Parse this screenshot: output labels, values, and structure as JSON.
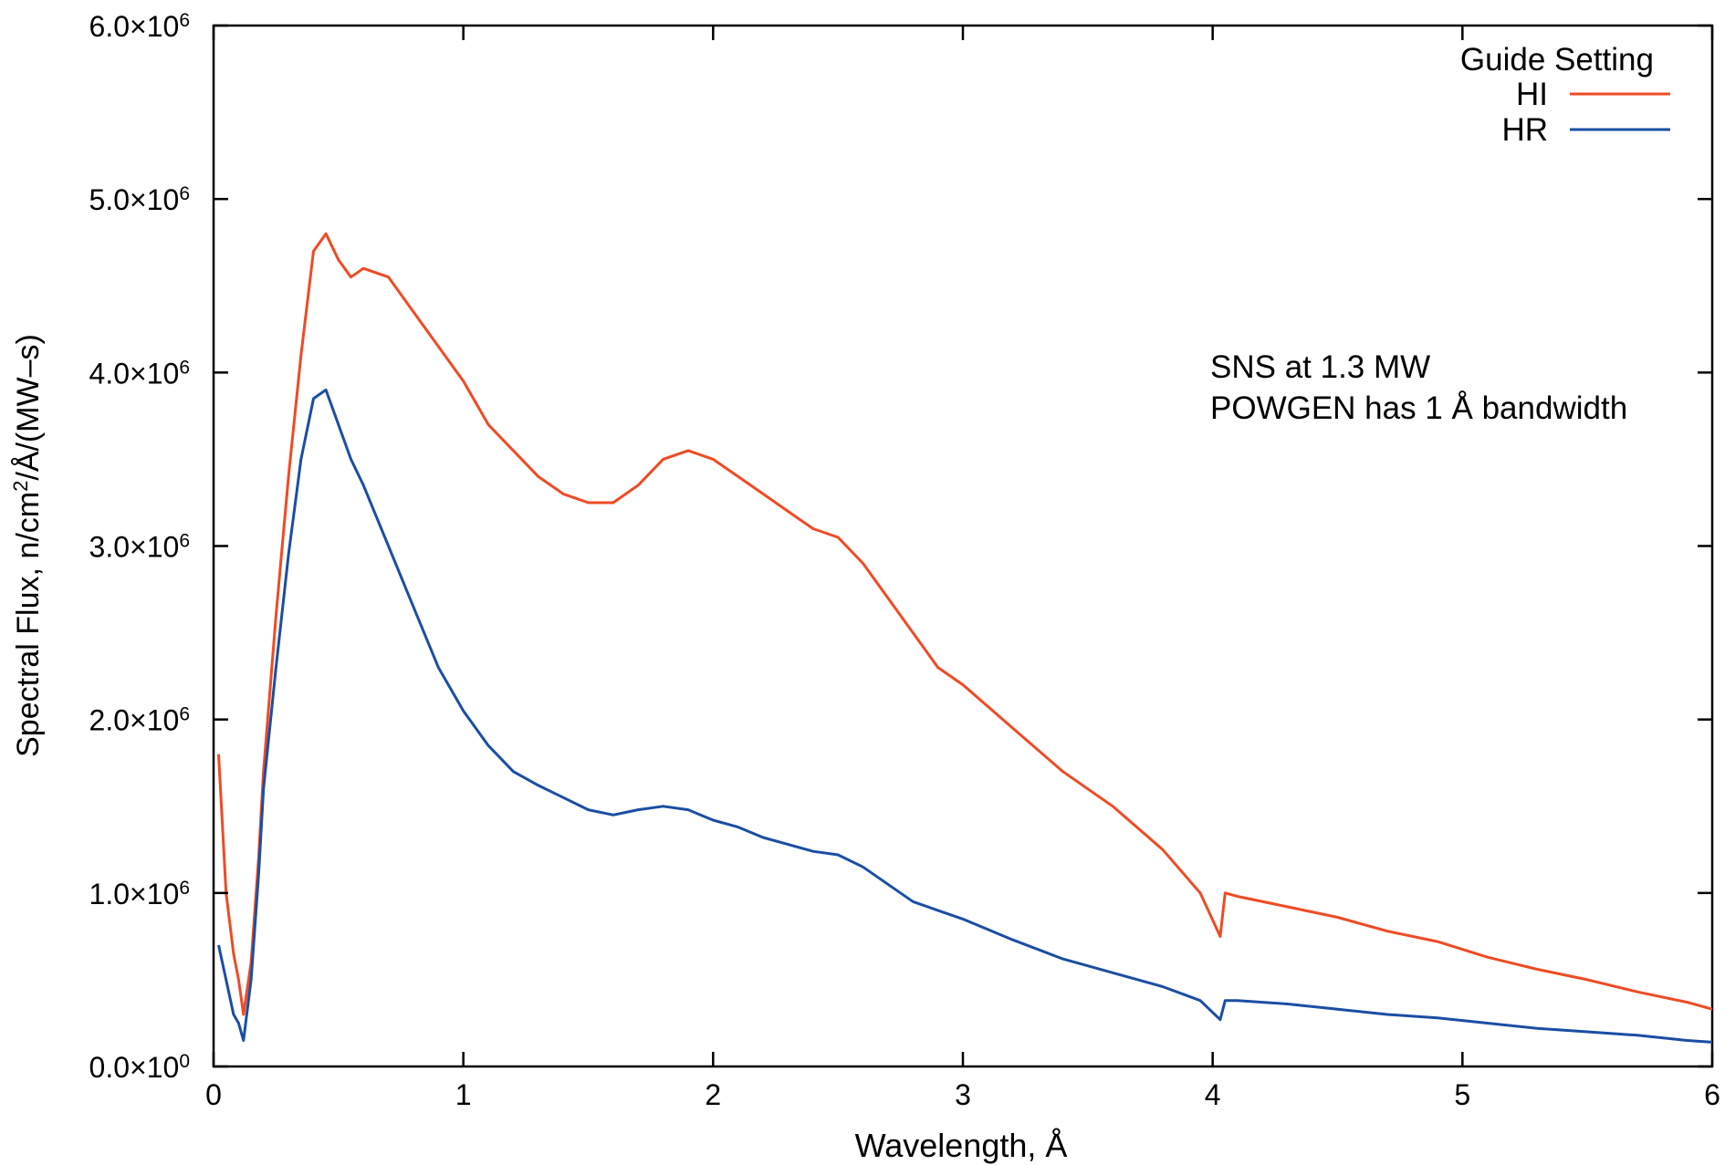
{
  "chart_data": {
    "type": "line",
    "xlabel": "Wavelength, Å",
    "ylabel": "Spectral Flux, n/cm²/Å/(MW–s)",
    "ylabel_parts": {
      "pre": "Spectral Flux, n/cm",
      "sup": "2",
      "post": "/Å/(MW–s)"
    },
    "xlim": [
      0,
      6
    ],
    "ylim": [
      0,
      6000000
    ],
    "x_ticks": [
      0,
      1,
      2,
      3,
      4,
      5,
      6
    ],
    "x_tick_labels": [
      "0",
      "1",
      "2",
      "3",
      "4",
      "5",
      "6"
    ],
    "y_ticks": [
      0,
      1000000,
      2000000,
      3000000,
      4000000,
      5000000,
      6000000
    ],
    "y_tick_labels": [
      {
        "base": "0.0×10",
        "exp": "0"
      },
      {
        "base": "1.0×10",
        "exp": "6"
      },
      {
        "base": "2.0×10",
        "exp": "6"
      },
      {
        "base": "3.0×10",
        "exp": "6"
      },
      {
        "base": "4.0×10",
        "exp": "6"
      },
      {
        "base": "5.0×10",
        "exp": "6"
      },
      {
        "base": "6.0×10",
        "exp": "6"
      }
    ],
    "grid": false,
    "legend_position": "top-right",
    "legend_title": "Guide Setting",
    "annotation_lines": [
      "SNS at 1.3 MW",
      "POWGEN has 1 Å bandwidth"
    ],
    "series": [
      {
        "name": "HI",
        "color": "#ee4b24",
        "x": [
          0.02,
          0.05,
          0.08,
          0.1,
          0.12,
          0.15,
          0.18,
          0.2,
          0.25,
          0.3,
          0.35,
          0.4,
          0.45,
          0.5,
          0.55,
          0.6,
          0.7,
          0.8,
          0.9,
          1.0,
          1.1,
          1.2,
          1.3,
          1.4,
          1.5,
          1.6,
          1.7,
          1.8,
          1.9,
          2.0,
          2.1,
          2.2,
          2.3,
          2.4,
          2.5,
          2.6,
          2.7,
          2.8,
          2.9,
          3.0,
          3.2,
          3.4,
          3.6,
          3.8,
          3.95,
          4.03,
          4.05,
          4.1,
          4.3,
          4.5,
          4.7,
          4.9,
          5.1,
          5.3,
          5.5,
          5.7,
          5.9,
          6.0
        ],
        "y": [
          1800000,
          1000000,
          650000,
          500000,
          300000,
          600000,
          1200000,
          1700000,
          2600000,
          3400000,
          4100000,
          4700000,
          4800000,
          4650000,
          4550000,
          4600000,
          4550000,
          4350000,
          4150000,
          3950000,
          3700000,
          3550000,
          3400000,
          3300000,
          3250000,
          3250000,
          3350000,
          3500000,
          3550000,
          3500000,
          3400000,
          3300000,
          3200000,
          3100000,
          3050000,
          2900000,
          2700000,
          2500000,
          2300000,
          2200000,
          1950000,
          1700000,
          1500000,
          1250000,
          1000000,
          750000,
          1000000,
          980000,
          920000,
          860000,
          780000,
          720000,
          630000,
          560000,
          500000,
          430000,
          370000,
          330000
        ]
      },
      {
        "name": "HR",
        "color": "#1a4ea3",
        "x": [
          0.02,
          0.05,
          0.08,
          0.1,
          0.12,
          0.15,
          0.18,
          0.2,
          0.25,
          0.3,
          0.35,
          0.4,
          0.45,
          0.5,
          0.55,
          0.6,
          0.7,
          0.8,
          0.9,
          1.0,
          1.1,
          1.2,
          1.3,
          1.4,
          1.5,
          1.6,
          1.7,
          1.8,
          1.9,
          2.0,
          2.1,
          2.2,
          2.3,
          2.4,
          2.5,
          2.6,
          2.7,
          2.8,
          2.9,
          3.0,
          3.2,
          3.4,
          3.6,
          3.8,
          3.95,
          4.03,
          4.05,
          4.1,
          4.3,
          4.5,
          4.7,
          4.9,
          5.1,
          5.3,
          5.5,
          5.7,
          5.9,
          6.0
        ],
        "y": [
          700000,
          500000,
          300000,
          250000,
          150000,
          500000,
          1100000,
          1600000,
          2300000,
          2950000,
          3500000,
          3850000,
          3900000,
          3700000,
          3500000,
          3350000,
          3000000,
          2650000,
          2300000,
          2050000,
          1850000,
          1700000,
          1620000,
          1550000,
          1480000,
          1450000,
          1480000,
          1500000,
          1480000,
          1420000,
          1380000,
          1320000,
          1280000,
          1240000,
          1220000,
          1150000,
          1050000,
          950000,
          900000,
          850000,
          730000,
          620000,
          540000,
          460000,
          380000,
          270000,
          380000,
          380000,
          360000,
          330000,
          300000,
          280000,
          250000,
          220000,
          200000,
          180000,
          150000,
          140000
        ]
      }
    ]
  }
}
